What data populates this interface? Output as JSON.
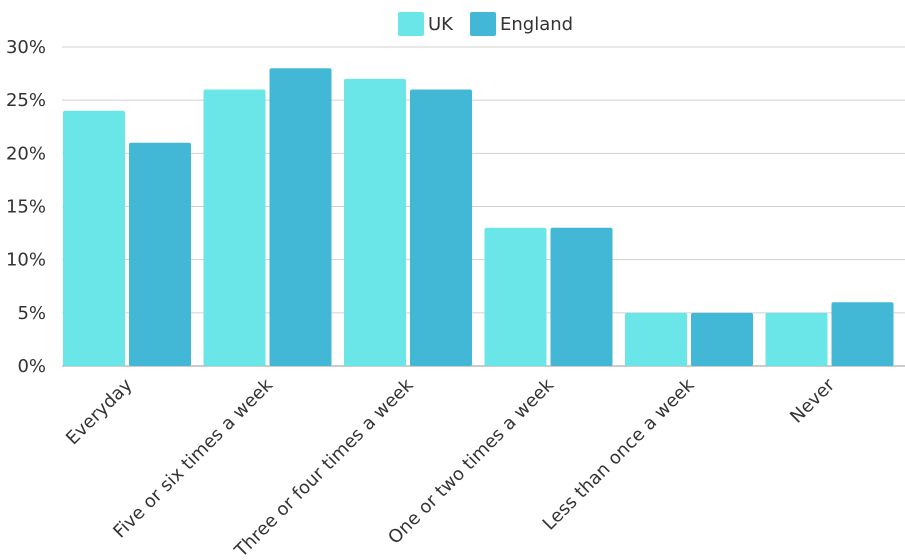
{
  "chart_data": {
    "type": "bar",
    "categories": [
      "Everyday",
      "Five or six times a week",
      "Three or four times a week",
      "One or two times a week",
      "Less than once a week",
      "Never"
    ],
    "series": [
      {
        "name": "UK",
        "color": "#6ae6e8",
        "values": [
          24,
          26,
          27,
          13,
          5,
          5
        ]
      },
      {
        "name": "England",
        "color": "#42b8d6",
        "values": [
          21,
          28,
          26,
          13,
          5,
          6
        ]
      }
    ],
    "y_ticks": [
      "0%",
      "5%",
      "10%",
      "15%",
      "20%",
      "25%",
      "30%"
    ],
    "ylim": [
      0,
      30
    ],
    "grid": true,
    "legend_position": "top-center"
  }
}
